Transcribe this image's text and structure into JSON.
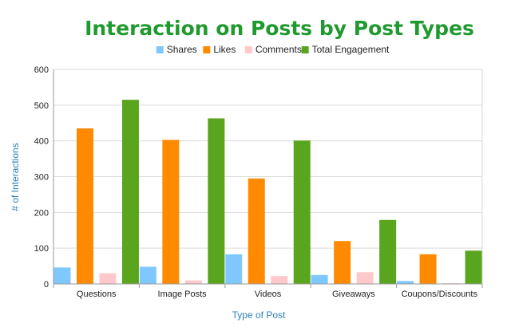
{
  "chart_data": {
    "type": "bar",
    "title": "Interaction on Posts by Post Types",
    "xlabel": "Type of Post",
    "ylabel": "# of Interactions",
    "categories": [
      "Questions",
      "Image Posts",
      "Videos",
      "Giveaways",
      "Coupons/Discounts"
    ],
    "series": [
      {
        "name": "Shares",
        "color": "#7fc8ff",
        "values": [
          46,
          48,
          83,
          25,
          8
        ]
      },
      {
        "name": "Likes",
        "color": "#ff8a00",
        "values": [
          435,
          403,
          295,
          120,
          83
        ]
      },
      {
        "name": "Comments",
        "color": "#ffc9cc",
        "values": [
          30,
          10,
          22,
          33,
          2
        ]
      },
      {
        "name": "Total Engagement",
        "color": "#5aa51e",
        "values": [
          515,
          463,
          401,
          179,
          93
        ]
      }
    ],
    "ylim": [
      0,
      600
    ],
    "yticks": [
      0,
      100,
      200,
      300,
      400,
      500,
      600
    ],
    "grid": true,
    "legend": "top-center"
  }
}
